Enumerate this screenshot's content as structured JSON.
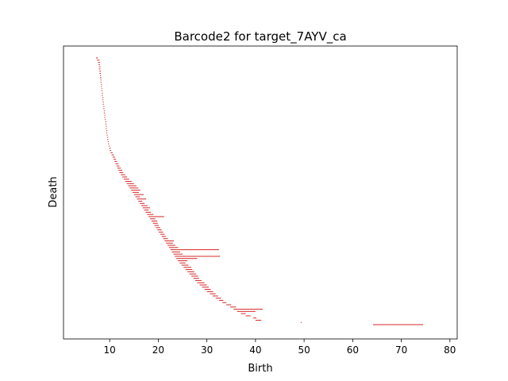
{
  "chart_data": {
    "type": "barcode",
    "title": "Barcode2 for target_7AYV_ca",
    "xlabel": "Birth",
    "ylabel": "Death",
    "xlim": [
      0.5,
      81.5
    ],
    "x_ticks": [
      10,
      20,
      30,
      40,
      50,
      60,
      70,
      80
    ],
    "y_ticks_shown": false,
    "grid": false,
    "bar_color": "#d62728",
    "series": [
      {
        "values_description": "bars [birth, death]",
        "bars": [
          [
            7.2,
            7.6
          ],
          [
            7.4,
            7.9
          ],
          [
            7.6,
            8.0
          ],
          [
            7.7,
            8.0
          ],
          [
            7.8,
            8.1
          ],
          [
            7.8,
            8.1
          ],
          [
            7.9,
            8.2
          ],
          [
            7.9,
            8.2
          ],
          [
            8.0,
            8.2
          ],
          [
            8.0,
            8.3
          ],
          [
            8.1,
            8.3
          ],
          [
            8.1,
            8.3
          ],
          [
            8.2,
            8.4
          ],
          [
            8.2,
            8.4
          ],
          [
            8.3,
            8.5
          ],
          [
            8.3,
            8.5
          ],
          [
            8.4,
            8.6
          ],
          [
            8.4,
            8.6
          ],
          [
            8.5,
            8.7
          ],
          [
            8.5,
            8.7
          ],
          [
            8.6,
            8.8
          ],
          [
            8.6,
            8.8
          ],
          [
            8.7,
            8.9
          ],
          [
            8.7,
            8.9
          ],
          [
            8.8,
            9.0
          ],
          [
            8.8,
            9.0
          ],
          [
            8.9,
            9.1
          ],
          [
            8.9,
            9.1
          ],
          [
            9.0,
            9.2
          ],
          [
            9.1,
            9.3
          ],
          [
            9.1,
            9.3
          ],
          [
            9.2,
            9.4
          ],
          [
            9.2,
            9.4
          ],
          [
            9.3,
            9.5
          ],
          [
            9.3,
            9.5
          ],
          [
            9.4,
            9.6
          ],
          [
            9.5,
            9.7
          ],
          [
            9.5,
            9.7
          ],
          [
            9.6,
            9.8
          ],
          [
            9.7,
            9.9
          ],
          [
            9.8,
            10.0
          ],
          [
            9.9,
            10.2
          ],
          [
            10.0,
            10.3
          ],
          [
            10.2,
            10.6
          ],
          [
            10.4,
            10.9
          ],
          [
            10.6,
            11.1
          ],
          [
            10.8,
            11.3
          ],
          [
            11.0,
            11.5
          ],
          [
            11.2,
            11.8
          ],
          [
            11.4,
            12.0
          ],
          [
            11.6,
            12.3
          ],
          [
            11.8,
            12.6
          ],
          [
            12.0,
            12.8
          ],
          [
            12.3,
            13.2
          ],
          [
            12.6,
            13.6
          ],
          [
            12.9,
            14.0
          ],
          [
            13.2,
            14.5
          ],
          [
            13.5,
            15.0
          ],
          [
            13.8,
            15.5
          ],
          [
            14.1,
            15.9
          ],
          [
            14.4,
            16.3
          ],
          [
            14.7,
            16.0
          ],
          [
            15.0,
            17.0
          ],
          [
            15.3,
            16.2
          ],
          [
            15.6,
            17.5
          ],
          [
            15.9,
            16.7
          ],
          [
            16.2,
            17.2
          ],
          [
            16.5,
            17.8
          ],
          [
            16.8,
            18.3
          ],
          [
            17.1,
            18.0
          ],
          [
            17.4,
            18.5
          ],
          [
            17.7,
            19.0
          ],
          [
            18.0,
            21.2
          ],
          [
            18.3,
            19.4
          ],
          [
            18.6,
            19.8
          ],
          [
            18.9,
            19.9
          ],
          [
            19.2,
            20.1
          ],
          [
            19.5,
            20.4
          ],
          [
            19.8,
            20.7
          ],
          [
            20.1,
            21.0
          ],
          [
            20.4,
            21.3
          ],
          [
            20.7,
            21.6
          ],
          [
            21.0,
            22.0
          ],
          [
            21.3,
            23.2
          ],
          [
            21.6,
            23.0
          ],
          [
            21.9,
            23.5
          ],
          [
            22.2,
            24.1
          ],
          [
            22.5,
            32.5
          ],
          [
            22.8,
            24.5
          ],
          [
            23.1,
            25.0
          ],
          [
            23.4,
            32.7
          ],
          [
            23.7,
            28.0
          ],
          [
            24.0,
            26.0
          ],
          [
            24.4,
            25.6
          ],
          [
            24.8,
            26.2
          ],
          [
            25.2,
            26.8
          ],
          [
            25.6,
            27.0
          ],
          [
            26.0,
            27.4
          ],
          [
            26.4,
            27.8
          ],
          [
            26.8,
            28.2
          ],
          [
            27.2,
            28.4
          ],
          [
            27.6,
            28.9
          ],
          [
            28.0,
            29.5
          ],
          [
            28.5,
            30.0
          ],
          [
            29.0,
            30.4
          ],
          [
            29.5,
            30.8
          ],
          [
            30.0,
            31.3
          ],
          [
            30.6,
            31.8
          ],
          [
            31.2,
            32.3
          ],
          [
            31.8,
            32.9
          ],
          [
            32.5,
            33.4
          ],
          [
            33.2,
            34.0
          ],
          [
            34.0,
            35.0
          ],
          [
            34.8,
            36.0
          ],
          [
            35.5,
            41.5
          ],
          [
            36.2,
            40.0
          ],
          [
            37.0,
            38.0
          ],
          [
            38.0,
            39.0
          ],
          [
            39.5,
            40.2
          ],
          [
            40.0,
            41.2
          ],
          [
            49.3,
            49.5
          ],
          [
            64.2,
            74.5
          ]
        ]
      }
    ]
  }
}
